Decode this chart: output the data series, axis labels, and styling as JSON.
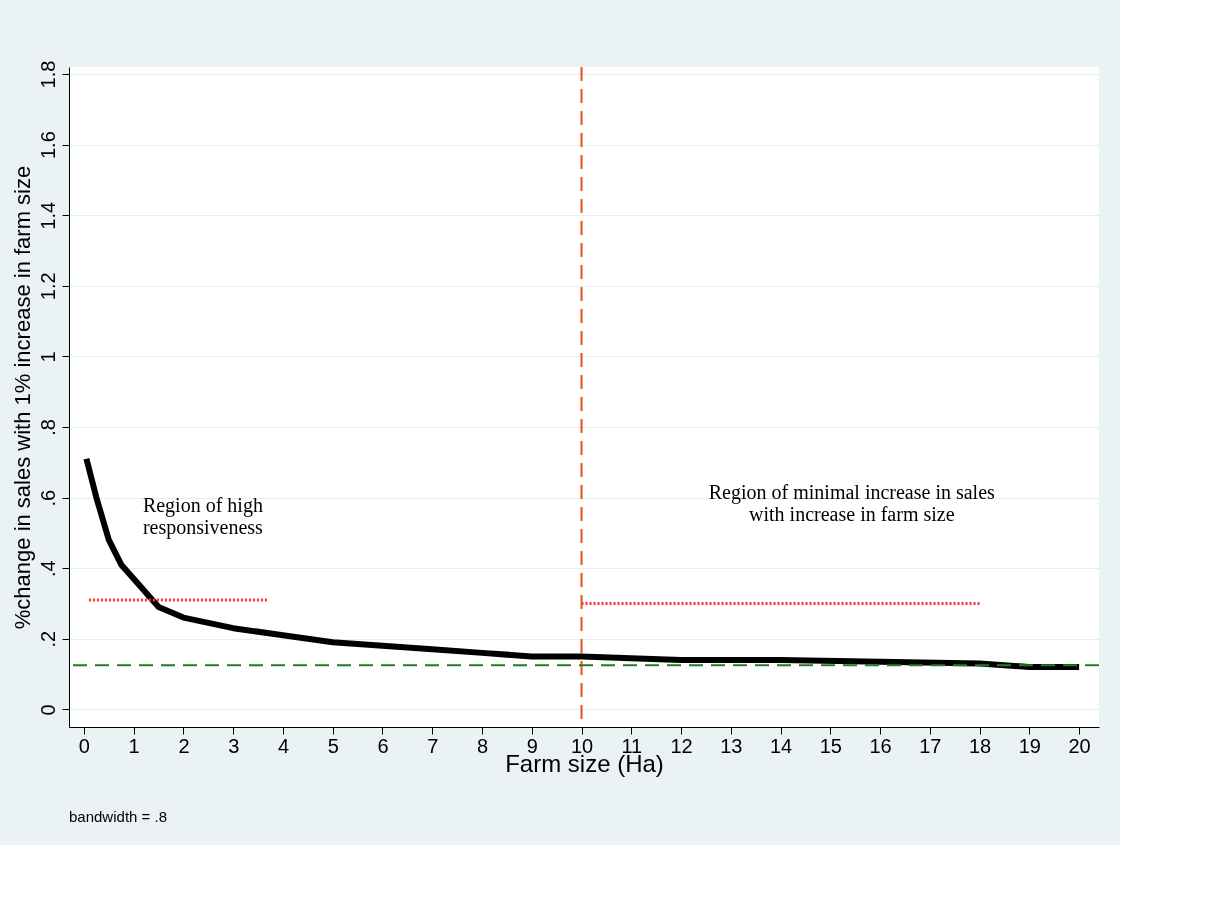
{
  "chart_data": {
    "type": "line",
    "xlabel": "Farm size (Ha)",
    "ylabel": "%change in sales with 1% increase in farm size",
    "xlim": [
      -0.3,
      20.4
    ],
    "xticks": [
      0,
      1,
      2,
      3,
      4,
      5,
      6,
      7,
      8,
      9,
      10,
      11,
      12,
      13,
      14,
      15,
      16,
      17,
      18,
      19,
      20
    ],
    "ylim": [
      -0.05,
      1.82
    ],
    "yticks": [
      0,
      {
        "value": 0.2,
        "label": ".2"
      },
      {
        "value": 0.4,
        "label": ".4"
      },
      {
        "value": 0.6,
        "label": ".6"
      },
      {
        "value": 0.8,
        "label": ".8"
      },
      1,
      1.2,
      1.4,
      1.6,
      1.8
    ],
    "grid": "y",
    "marker": "none",
    "series": [
      {
        "color": "#000000",
        "x": [
          0.05,
          0.25,
          0.5,
          0.75,
          1,
          1.5,
          2,
          3,
          4,
          5,
          6,
          7,
          8,
          9,
          10,
          12,
          14,
          16,
          18,
          19,
          20
        ],
        "values": [
          0.71,
          0.6,
          0.48,
          0.41,
          0.37,
          0.29,
          0.26,
          0.23,
          0.21,
          0.19,
          0.18,
          0.17,
          0.16,
          0.15,
          0.15,
          0.14,
          0.14,
          0.135,
          0.13,
          0.12,
          0.12
        ],
        "line_style": "solid"
      },
      {
        "type": "line",
        "color": "#ff3030",
        "x": [
          0.1,
          3.7
        ],
        "values": [
          0.31,
          0.31
        ],
        "line_style": "dotted"
      },
      {
        "type": "line",
        "color": "#ff3030",
        "x": [
          10,
          18
        ],
        "values": [
          0.3,
          0.3
        ],
        "line_style": "dotted"
      }
    ],
    "ref_lines": [
      {
        "axis": "x",
        "value": 10,
        "color": "#e8501c",
        "line_style": "dashed"
      },
      {
        "axis": "y",
        "value": 0.125,
        "color": "#208020",
        "line_style": "dashed"
      }
    ],
    "annotations": [
      "Region of  high\nresponsiveness",
      "Region of  minimal increase in sales\nwith increase in farm size",
      "bandwidth = .8"
    ]
  }
}
